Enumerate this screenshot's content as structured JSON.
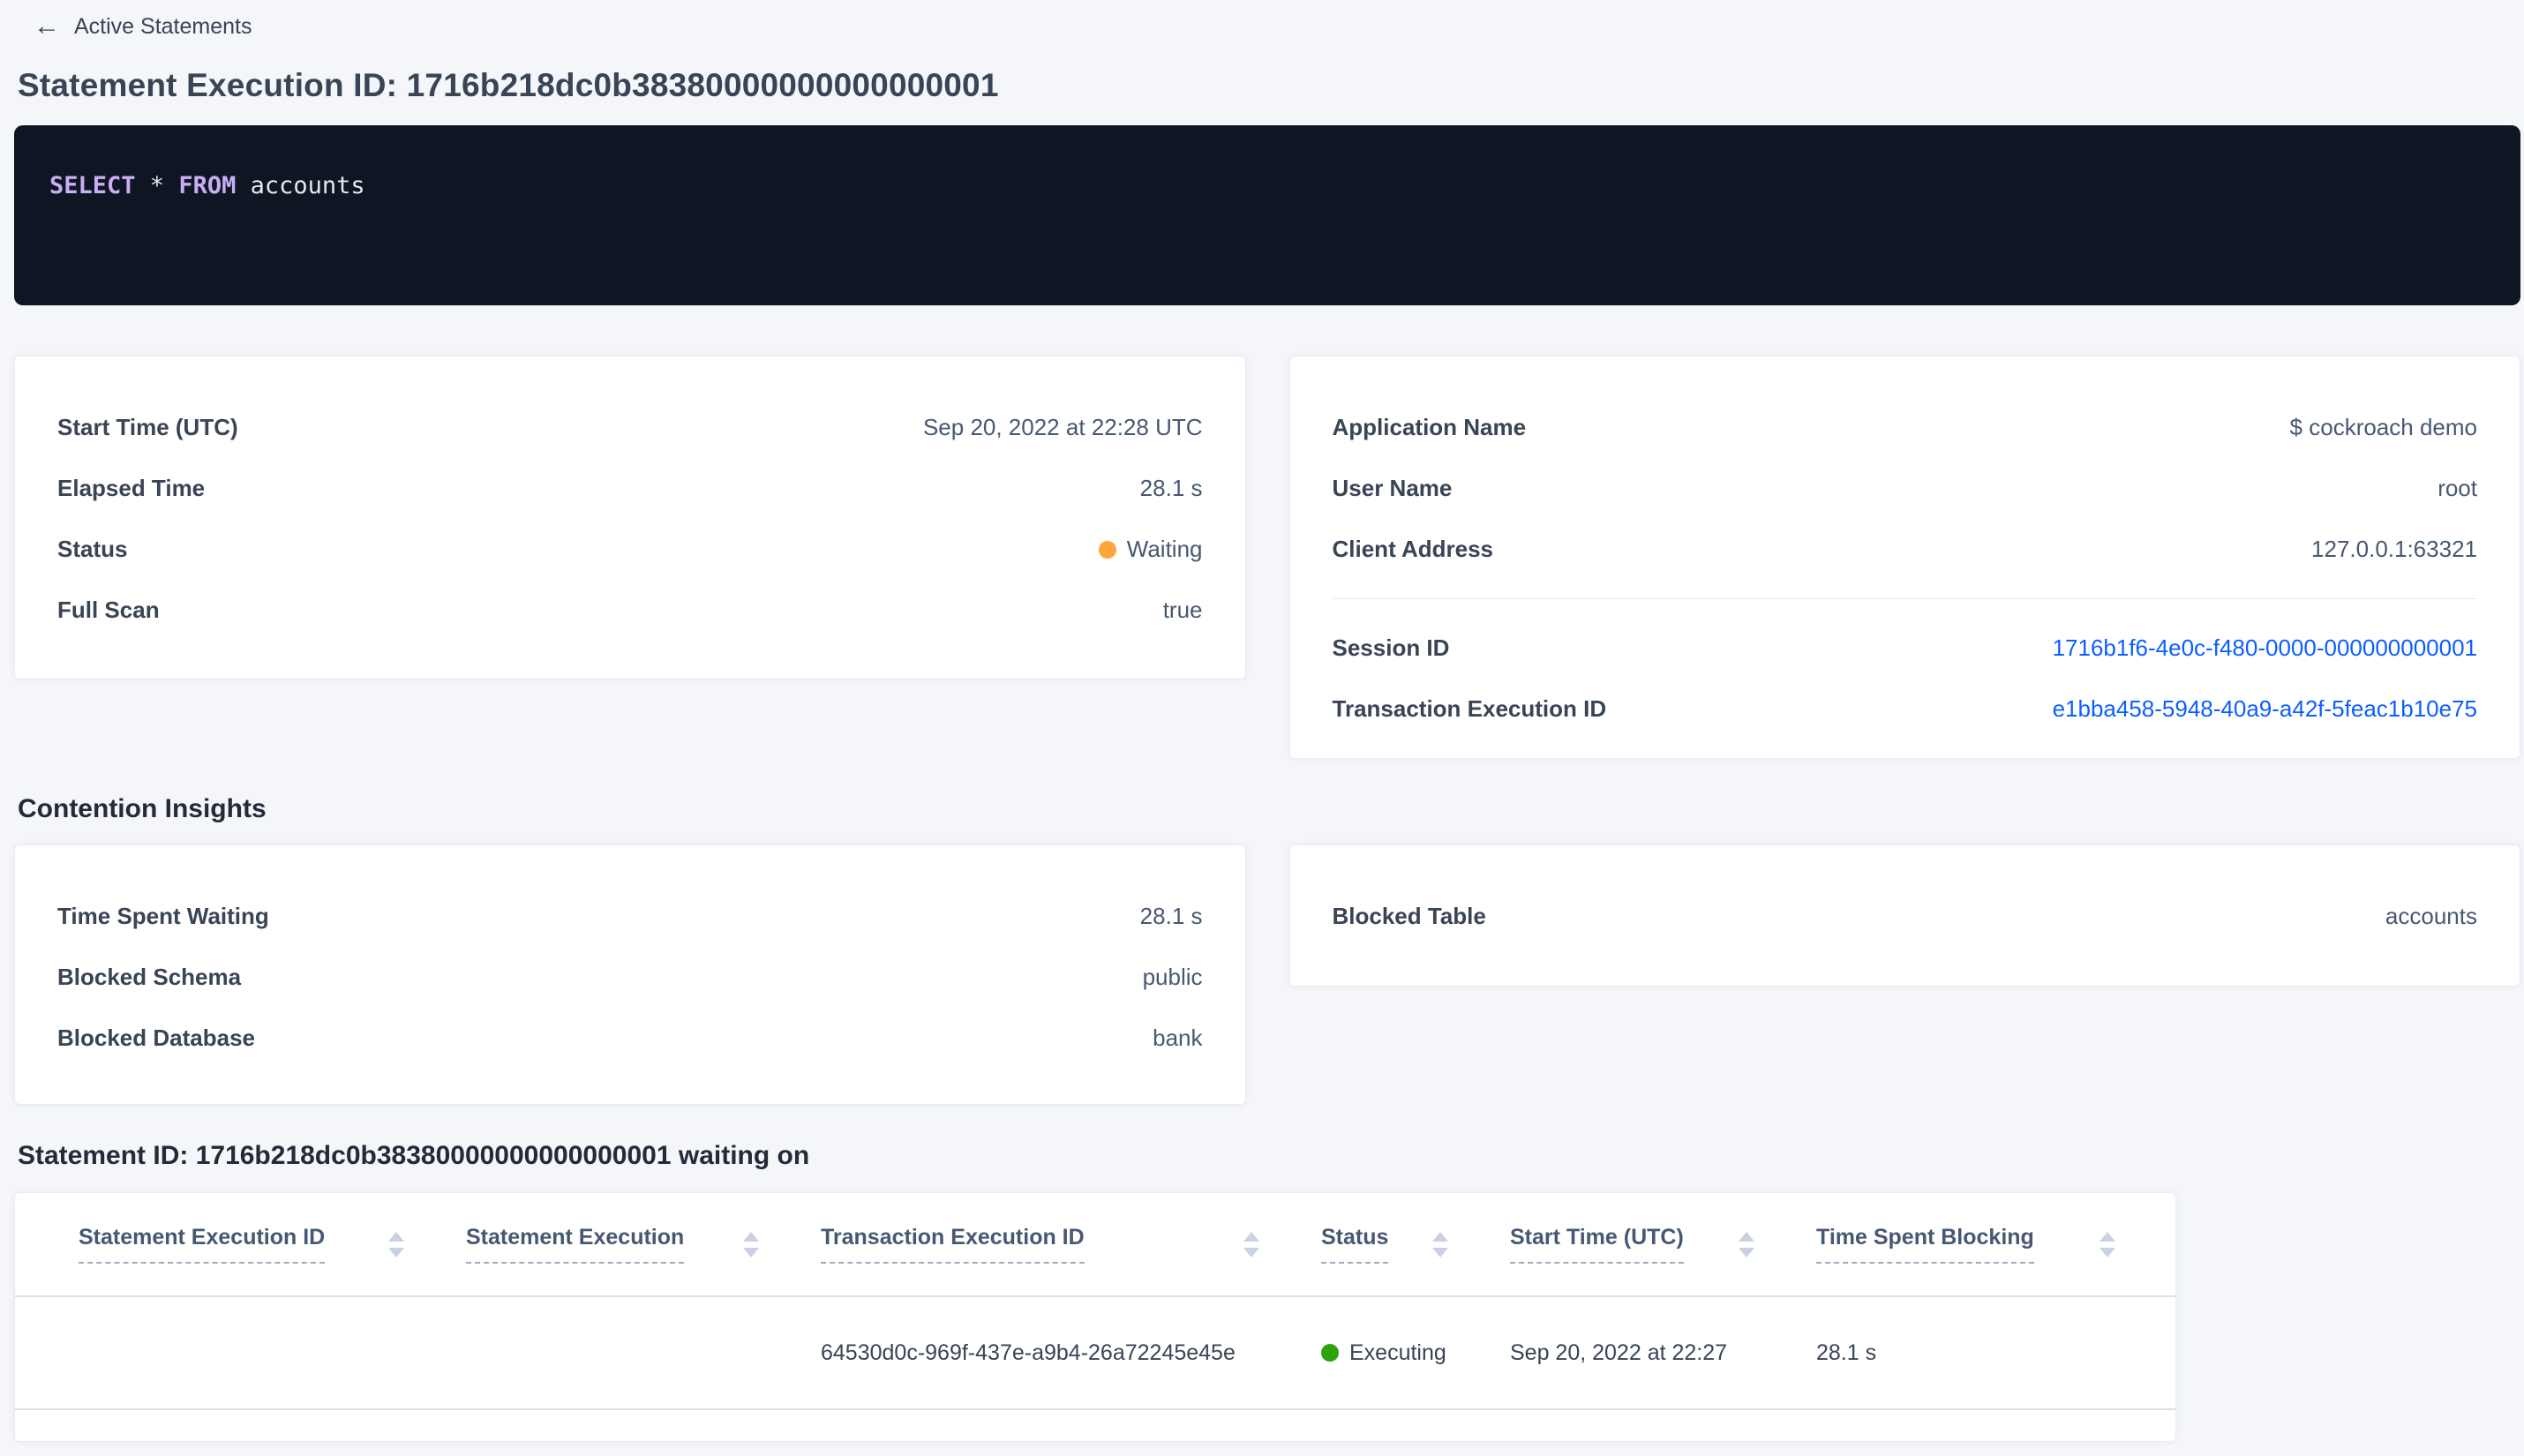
{
  "colors": {
    "link_blue": "#0b5fff",
    "status_waiting": "#ffa53b",
    "status_executing": "#2fa30c"
  },
  "breadcrumb": {
    "back_icon": "←",
    "label": "Active Statements"
  },
  "page_title": "Statement Execution ID: 1716b218dc0b38380000000000000001",
  "sql": {
    "tokens": [
      {
        "text": "SELECT",
        "type": "keyword"
      },
      {
        "text": " * ",
        "type": "plain"
      },
      {
        "text": "FROM",
        "type": "keyword"
      },
      {
        "text": " accounts",
        "type": "plain"
      }
    ]
  },
  "execution_card": {
    "start_time": {
      "label": "Start Time (UTC)",
      "value": "Sep 20, 2022 at 22:28 UTC"
    },
    "elapsed_time": {
      "label": "Elapsed Time",
      "value": "28.1 s"
    },
    "status": {
      "label": "Status",
      "value": "Waiting"
    },
    "full_scan": {
      "label": "Full Scan",
      "value": "true"
    }
  },
  "session_card": {
    "application_name": {
      "label": "Application Name",
      "value": "$ cockroach demo"
    },
    "user_name": {
      "label": "User Name",
      "value": "root"
    },
    "client_address": {
      "label": "Client Address",
      "value": "127.0.0.1:63321"
    },
    "session_id": {
      "label": "Session ID",
      "value": "1716b1f6-4e0c-f480-0000-000000000001"
    },
    "transaction_execution_id": {
      "label": "Transaction Execution ID",
      "value": "e1bba458-5948-40a9-a42f-5feac1b10e75"
    }
  },
  "contention": {
    "section_title": "Contention Insights",
    "time_spent_waiting": {
      "label": "Time Spent Waiting",
      "value": "28.1 s"
    },
    "blocked_schema": {
      "label": "Blocked Schema",
      "value": "public"
    },
    "blocked_database": {
      "label": "Blocked Database",
      "value": "bank"
    },
    "blocked_table": {
      "label": "Blocked Table",
      "value": "accounts"
    }
  },
  "waiting_table": {
    "title": "Statement ID: 1716b218dc0b38380000000000000001 waiting on",
    "columns": [
      "Statement Execution ID",
      "Statement Execution",
      "Transaction Execution ID",
      "Status",
      "Start Time (UTC)",
      "Time Spent Blocking"
    ],
    "rows": [
      {
        "statement_execution_id": "",
        "statement_execution": "",
        "transaction_execution_id": "64530d0c-969f-437e-a9b4-26a72245e45e",
        "status": "Executing",
        "start_time": "Sep 20, 2022 at 22:27",
        "time_spent_blocking": "28.1 s"
      }
    ]
  }
}
